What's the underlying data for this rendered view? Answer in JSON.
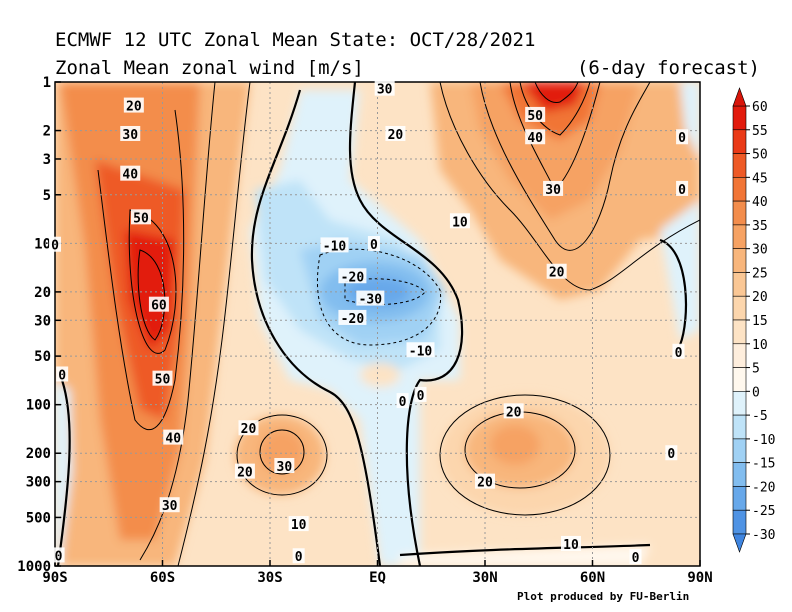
{
  "chart_data": {
    "type": "contour",
    "title": "ECMWF 12 UTC Zonal Mean State: OCT/28/2021",
    "subtitle": "Zonal Mean zonal wind [m/s]",
    "forecast_note": "(6-day forecast)",
    "credit": "Plot produced by FU-Berlin",
    "x_axis": {
      "range": [
        -90,
        90
      ],
      "ticks": [
        {
          "value": -90,
          "label": "90S"
        },
        {
          "value": -60,
          "label": "60S"
        },
        {
          "value": -30,
          "label": "30S"
        },
        {
          "value": 0,
          "label": "EQ"
        },
        {
          "value": 30,
          "label": "30N"
        },
        {
          "value": 60,
          "label": "60N"
        },
        {
          "value": 90,
          "label": "90N"
        }
      ]
    },
    "y_axis": {
      "scale": "log",
      "reversed": true,
      "range": [
        1,
        1000
      ],
      "ticks": [
        {
          "value": 1,
          "label": "1"
        },
        {
          "value": 2,
          "label": "2"
        },
        {
          "value": 3,
          "label": "3"
        },
        {
          "value": 5,
          "label": "5"
        },
        {
          "value": 10,
          "label": "10"
        },
        {
          "value": 20,
          "label": "20"
        },
        {
          "value": 30,
          "label": "30"
        },
        {
          "value": 50,
          "label": "50"
        },
        {
          "value": 100,
          "label": "100"
        },
        {
          "value": 200,
          "label": "200"
        },
        {
          "value": 300,
          "label": "300"
        },
        {
          "value": 500,
          "label": "500"
        },
        {
          "value": 1000,
          "label": "1000"
        }
      ]
    },
    "grid": true,
    "colorbar": {
      "position": "right",
      "ticks": [
        "60",
        "55",
        "50",
        "45",
        "40",
        "35",
        "30",
        "25",
        "20",
        "15",
        "10",
        "5",
        "0",
        "-5",
        "-10",
        "-15",
        "-20",
        "-25",
        "-30"
      ],
      "bins": [
        {
          "from": 55,
          "to": 60,
          "color": "#e21a0c"
        },
        {
          "from": 50,
          "to": 55,
          "color": "#ea3a17"
        },
        {
          "from": 45,
          "to": 50,
          "color": "#ee5a26"
        },
        {
          "from": 40,
          "to": 45,
          "color": "#f17536"
        },
        {
          "from": 35,
          "to": 40,
          "color": "#f38d4c"
        },
        {
          "from": 30,
          "to": 35,
          "color": "#f6a263"
        },
        {
          "from": 25,
          "to": 30,
          "color": "#f8b67c"
        },
        {
          "from": 20,
          "to": 25,
          "color": "#fac795"
        },
        {
          "from": 15,
          "to": 20,
          "color": "#fcd6ad"
        },
        {
          "from": 10,
          "to": 15,
          "color": "#fde3c5"
        },
        {
          "from": 5,
          "to": 10,
          "color": "#feeedd"
        },
        {
          "from": 0,
          "to": 5,
          "color": "#fff8ee"
        },
        {
          "from": -5,
          "to": 0,
          "color": "#dff2fb"
        },
        {
          "from": -10,
          "to": -5,
          "color": "#bfe3f8"
        },
        {
          "from": -15,
          "to": -10,
          "color": "#a0d1f4"
        },
        {
          "from": -20,
          "to": -15,
          "color": "#82bdef"
        },
        {
          "from": -25,
          "to": -20,
          "color": "#67a8ea"
        },
        {
          "from": -30,
          "to": -25,
          "color": "#4f93e4"
        }
      ]
    },
    "features": [
      {
        "name": "southern-polar-night-jet",
        "lat": -64,
        "pressure": 20,
        "max": 60
      },
      {
        "name": "southern-tropospheric-jet",
        "lat": -30,
        "pressure": 200,
        "max": 30
      },
      {
        "name": "equatorial-easterlies",
        "lat": -2,
        "pressure": 20,
        "min": -30
      },
      {
        "name": "northern-upper-jet",
        "lat": 48,
        "pressure": 1,
        "max": 50
      },
      {
        "name": "northern-tropospheric-jet",
        "lat": 40,
        "pressure": 200,
        "max": 25
      }
    ],
    "contour_labels": [
      {
        "text": "20",
        "lat": -68,
        "pressure": 1.4
      },
      {
        "text": "30",
        "lat": -69,
        "pressure": 2.1
      },
      {
        "text": "40",
        "lat": -69,
        "pressure": 3.7
      },
      {
        "text": "50",
        "lat": -66,
        "pressure": 6.9
      },
      {
        "text": "60",
        "lat": -61,
        "pressure": 24
      },
      {
        "text": "50",
        "lat": -60,
        "pressure": 69
      },
      {
        "text": "40",
        "lat": -57,
        "pressure": 160
      },
      {
        "text": "30",
        "lat": -58,
        "pressure": 420
      },
      {
        "text": "20",
        "lat": -36,
        "pressure": 140
      },
      {
        "text": "20",
        "lat": -37,
        "pressure": 260
      },
      {
        "text": "30",
        "lat": -26,
        "pressure": 240
      },
      {
        "text": "10",
        "lat": -22,
        "pressure": 550
      },
      {
        "text": "0",
        "lat": -22,
        "pressure": 870
      },
      {
        "text": "0",
        "lat": -89,
        "pressure": 860
      },
      {
        "text": "0",
        "lat": -88,
        "pressure": 65
      },
      {
        "text": "0",
        "lat": -90,
        "pressure": 10.2
      },
      {
        "text": "-10",
        "lat": -12,
        "pressure": 10.3
      },
      {
        "text": "0",
        "lat": -1,
        "pressure": 10.1
      },
      {
        "text": "-20",
        "lat": -7,
        "pressure": 16
      },
      {
        "text": "-30",
        "lat": -2,
        "pressure": 22
      },
      {
        "text": "-20",
        "lat": -7,
        "pressure": 29
      },
      {
        "text": "-10",
        "lat": 12,
        "pressure": 46
      },
      {
        "text": "0",
        "lat": 7,
        "pressure": 95
      },
      {
        "text": "0",
        "lat": 12,
        "pressure": 87
      },
      {
        "text": "30",
        "lat": 2,
        "pressure": 1.1
      },
      {
        "text": "20",
        "lat": 5,
        "pressure": 2.1
      },
      {
        "text": "10",
        "lat": 23,
        "pressure": 7.3
      },
      {
        "text": "50",
        "lat": 44,
        "pressure": 1.6
      },
      {
        "text": "40",
        "lat": 44,
        "pressure": 2.2
      },
      {
        "text": "30",
        "lat": 49,
        "pressure": 4.6
      },
      {
        "text": "20",
        "lat": 50,
        "pressure": 15
      },
      {
        "text": "20",
        "lat": 38,
        "pressure": 110
      },
      {
        "text": "20",
        "lat": 30,
        "pressure": 300
      },
      {
        "text": "10",
        "lat": 54,
        "pressure": 730
      },
      {
        "text": "0",
        "lat": 72,
        "pressure": 880
      },
      {
        "text": "0",
        "lat": 85,
        "pressure": 2.2
      },
      {
        "text": "0",
        "lat": 85,
        "pressure": 4.6
      },
      {
        "text": "0",
        "lat": 84,
        "pressure": 47
      },
      {
        "text": "0",
        "lat": 82,
        "pressure": 200
      }
    ]
  }
}
